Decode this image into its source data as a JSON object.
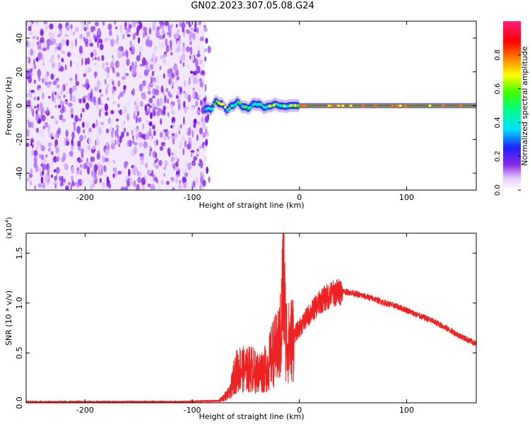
{
  "title": "GN02.2023.307.05.08.G24",
  "colors": {
    "snr_line": "#ee2222",
    "axis": "#000000",
    "background": "#ffffff"
  },
  "chart_data": [
    {
      "type": "heatmap",
      "title": "GN02.2023.307.05.08.G24",
      "xlabel": "Height of straight line (km)",
      "ylabel": "Frequency (Hz)",
      "xlim": [
        -255,
        165
      ],
      "ylim": [
        -50,
        50
      ],
      "x_ticks": [
        -200,
        -100,
        0,
        100
      ],
      "y_ticks": [
        -40,
        -20,
        0,
        20,
        40
      ],
      "noise_region_x": [
        -255,
        -88
      ],
      "tonal_band": {
        "x": [
          -88,
          165
        ],
        "center_hz": 0,
        "width_hz": 3
      },
      "colorbar": {
        "label": "Normalized spectral amplitude",
        "range": [
          0.0,
          1.0
        ],
        "ticks": [
          0.0,
          0.2,
          0.4,
          0.6,
          0.8
        ],
        "colormap": "white-violet-blue-cyan-green-yellow-red-pink"
      },
      "grid": false
    },
    {
      "type": "line",
      "xlabel": "Height of straight line (km)",
      "ylabel": "SNR (10 * v/v)",
      "y_multiplier_label": "(x10",
      "y_multiplier_exp": "4",
      "y_multiplier_close": ")",
      "xlim": [
        -255,
        165
      ],
      "ylim": [
        0,
        1.7
      ],
      "x_ticks": [
        -200,
        -100,
        0,
        100
      ],
      "y_ticks": [
        0.0,
        0.5,
        1.0,
        1.5
      ],
      "y_tick_labels": [
        "0.0",
        "0.5",
        "1.0",
        "1.5"
      ],
      "series": [
        {
          "color": "#ee2222",
          "x": [
            -255,
            -200,
            -150,
            -110,
            -75,
            -65,
            -60,
            -55,
            -50,
            -45,
            -40,
            -35,
            -30,
            -25,
            -20,
            -17,
            -15,
            -13,
            -10,
            -5,
            0,
            10,
            20,
            30,
            40,
            50,
            60,
            70,
            80,
            90,
            100,
            110,
            120,
            130,
            140,
            150,
            165
          ],
          "y": [
            0.01,
            0.01,
            0.01,
            0.01,
            0.02,
            0.1,
            0.3,
            0.35,
            0.32,
            0.35,
            0.3,
            0.32,
            0.35,
            0.5,
            0.55,
            0.7,
            1.45,
            0.7,
            0.6,
            0.68,
            0.75,
            0.9,
            1.02,
            1.09,
            1.12,
            1.1,
            1.07,
            1.04,
            1.0,
            0.97,
            0.93,
            0.88,
            0.84,
            0.79,
            0.73,
            0.67,
            0.59
          ]
        }
      ],
      "grid": false
    }
  ]
}
